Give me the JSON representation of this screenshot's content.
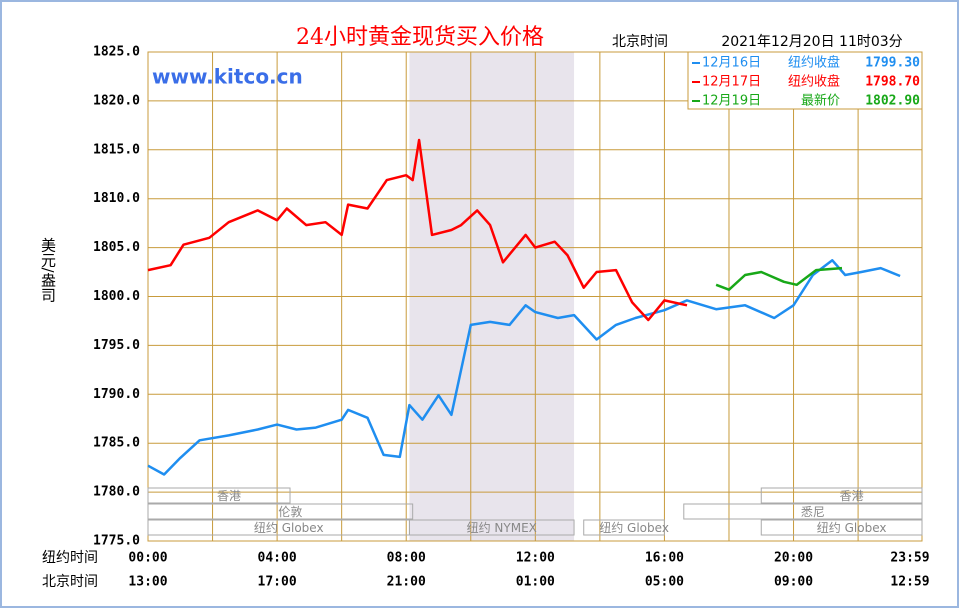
{
  "chart_data": {
    "type": "line",
    "title": "24小时黄金现货买入价格",
    "time_zone_label": "北京时间",
    "timestamp": "2021年12月20日 11时03分",
    "watermark": "www.kitco.cn",
    "ylabel": "美元/盎司",
    "x_row_labels": [
      "纽约时间",
      "北京时间"
    ],
    "xlim": [
      0,
      23.98
    ],
    "xticks": [
      {
        "value": 0,
        "label": "00:00"
      },
      {
        "value": 4,
        "label": "04:00"
      },
      {
        "value": 8,
        "label": "08:00"
      },
      {
        "value": 12,
        "label": "12:00"
      },
      {
        "value": 16,
        "label": "16:00"
      },
      {
        "value": 20,
        "label": "20:00"
      },
      {
        "value": 23.98,
        "label": "23:59"
      }
    ],
    "x2_labels": [
      "13:00",
      "17:00",
      "21:00",
      "01:00",
      "05:00",
      "09:00",
      "12:59"
    ],
    "x_minor_grid": [
      2,
      6,
      10,
      14,
      18,
      22
    ],
    "ylim": [
      1775,
      1825
    ],
    "yticks": [
      {
        "value": 1775,
        "label": "1775.0"
      },
      {
        "value": 1780,
        "label": "1780.0"
      },
      {
        "value": 1785,
        "label": "1785.0"
      },
      {
        "value": 1790,
        "label": "1790.0"
      },
      {
        "value": 1795,
        "label": "1795.0"
      },
      {
        "value": 1800,
        "label": "1800.0"
      },
      {
        "value": 1805,
        "label": "1805.0"
      },
      {
        "value": 1810,
        "label": "1810.0"
      },
      {
        "value": 1815,
        "label": "1815.0"
      },
      {
        "value": 1820,
        "label": "1820.0"
      },
      {
        "value": 1825,
        "label": "1825.0"
      }
    ],
    "grid": true,
    "sessions": [
      [
        {
          "label": "香港",
          "start": 0,
          "end": 4.4
        },
        {
          "label": "香港",
          "start": 19.0,
          "end": 23.98
        }
      ],
      [
        {
          "label": "伦敦",
          "start": 0,
          "end": 8.2
        },
        {
          "label": "悉尼",
          "start": 16.6,
          "end": 23.98
        }
      ],
      [
        {
          "label": "纽约 Globex",
          "start": 0,
          "end": 8.1
        },
        {
          "label": "纽约 NYMEX",
          "start": 8.1,
          "end": 13.2,
          "shaded": true
        },
        {
          "label": "纽约 Globex",
          "start": 13.5,
          "end": 16.0
        },
        {
          "label": "纽约 Globex",
          "start": 19.0,
          "end": 23.98
        }
      ]
    ],
    "series": [
      {
        "name": "12月16日",
        "legend_text": "纽约收盘",
        "legend_value": {
          "value": 1799.3,
          "label": "1799.30"
        },
        "color": "#1f8ef0",
        "x": [
          0,
          0.5,
          1.0,
          1.6,
          2.5,
          3.4,
          4.0,
          4.6,
          5.2,
          6.0,
          6.2,
          6.8,
          7.3,
          7.8,
          8.1,
          8.5,
          9.0,
          9.4,
          9.7,
          10.0,
          10.6,
          11.2,
          11.7,
          12.0,
          12.7,
          13.2,
          13.9,
          14.5,
          15.1,
          16.0,
          16.7,
          17.6,
          18.5,
          19.4,
          20.0,
          20.6,
          21.2,
          21.6,
          22.1,
          22.7,
          23.3
        ],
        "values": [
          1782.7,
          1781.8,
          1783.5,
          1785.3,
          1785.8,
          1786.4,
          1786.9,
          1786.4,
          1786.6,
          1787.4,
          1788.4,
          1787.6,
          1783.8,
          1783.6,
          1788.9,
          1787.4,
          1789.9,
          1787.9,
          1792.5,
          1797.1,
          1797.4,
          1797.1,
          1799.1,
          1798.4,
          1797.8,
          1798.1,
          1795.6,
          1797.1,
          1797.8,
          1798.6,
          1799.6,
          1798.7,
          1799.1,
          1797.8,
          1799.1,
          1802.2,
          1803.7,
          1802.2,
          1802.5,
          1802.9,
          1802.1
        ]
      },
      {
        "name": "12月17日",
        "legend_text": "纽约收盘",
        "legend_value": {
          "value": 1798.7,
          "label": "1798.70"
        },
        "color": "#ff0000",
        "x": [
          0,
          0.7,
          1.1,
          1.9,
          2.5,
          3.4,
          4.0,
          4.3,
          4.9,
          5.5,
          6.0,
          6.2,
          6.8,
          7.4,
          8.0,
          8.2,
          8.4,
          8.8,
          9.4,
          9.7,
          10.2,
          10.6,
          11.0,
          11.7,
          12.0,
          12.6,
          13.0,
          13.5,
          13.9,
          14.5,
          15.0,
          15.5,
          16.0,
          16.7
        ],
        "values": [
          1802.7,
          1803.2,
          1805.3,
          1806.0,
          1807.6,
          1808.8,
          1807.8,
          1809.0,
          1807.3,
          1807.6,
          1806.3,
          1809.4,
          1809.0,
          1811.9,
          1812.4,
          1811.9,
          1816.0,
          1806.3,
          1806.8,
          1807.3,
          1808.8,
          1807.3,
          1803.5,
          1806.3,
          1805.0,
          1805.6,
          1804.2,
          1800.9,
          1802.5,
          1802.7,
          1799.4,
          1797.6,
          1799.6,
          1799.1
        ]
      },
      {
        "name": "12月19日",
        "legend_text": "最新价",
        "legend_value": {
          "value": 1802.9,
          "label": "1802.90"
        },
        "color": "#18a818",
        "x": [
          17.6,
          18.0,
          18.5,
          19.0,
          19.7,
          20.1,
          20.7,
          21.5
        ],
        "values": [
          1801.2,
          1800.7,
          1802.2,
          1802.5,
          1801.5,
          1801.2,
          1802.7,
          1802.9
        ]
      }
    ]
  }
}
